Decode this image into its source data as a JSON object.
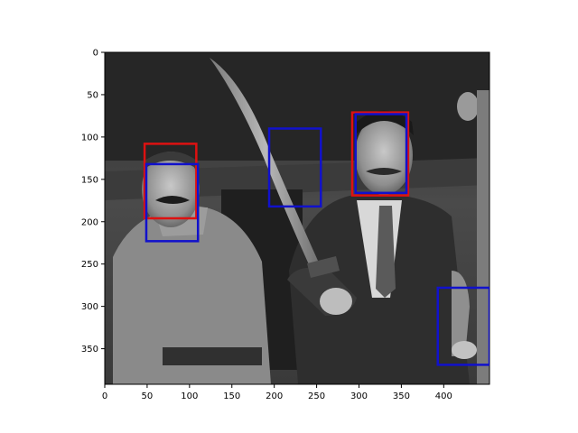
{
  "chart_data": {
    "type": "image_with_bounding_boxes",
    "title": "",
    "xlabel": "",
    "ylabel": "",
    "xlim": [
      0,
      454
    ],
    "ylim": [
      392,
      0
    ],
    "x_ticks": [
      0,
      50,
      100,
      150,
      200,
      250,
      300,
      350,
      400
    ],
    "y_ticks": [
      0,
      50,
      100,
      150,
      200,
      250,
      300,
      350
    ],
    "grid": false,
    "legend": "none",
    "image": {
      "description": "black-and-white photograph of two men; man on right raises a large curved sword",
      "tone": "grayscale"
    },
    "series": [
      {
        "color": "#dd1111",
        "boxes": [
          {
            "x0": 47,
            "y0": 108,
            "x1": 108,
            "y1": 196
          },
          {
            "x0": 292,
            "y0": 71,
            "x1": 358,
            "y1": 169
          }
        ]
      },
      {
        "color": "#1111cc",
        "boxes": [
          {
            "x0": 49,
            "y0": 132,
            "x1": 110,
            "y1": 223
          },
          {
            "x0": 194,
            "y0": 90,
            "x1": 255,
            "y1": 182
          },
          {
            "x0": 296,
            "y0": 73,
            "x1": 356,
            "y1": 166
          },
          {
            "x0": 393,
            "y0": 278,
            "x1": 454,
            "y1": 369
          }
        ]
      }
    ]
  }
}
